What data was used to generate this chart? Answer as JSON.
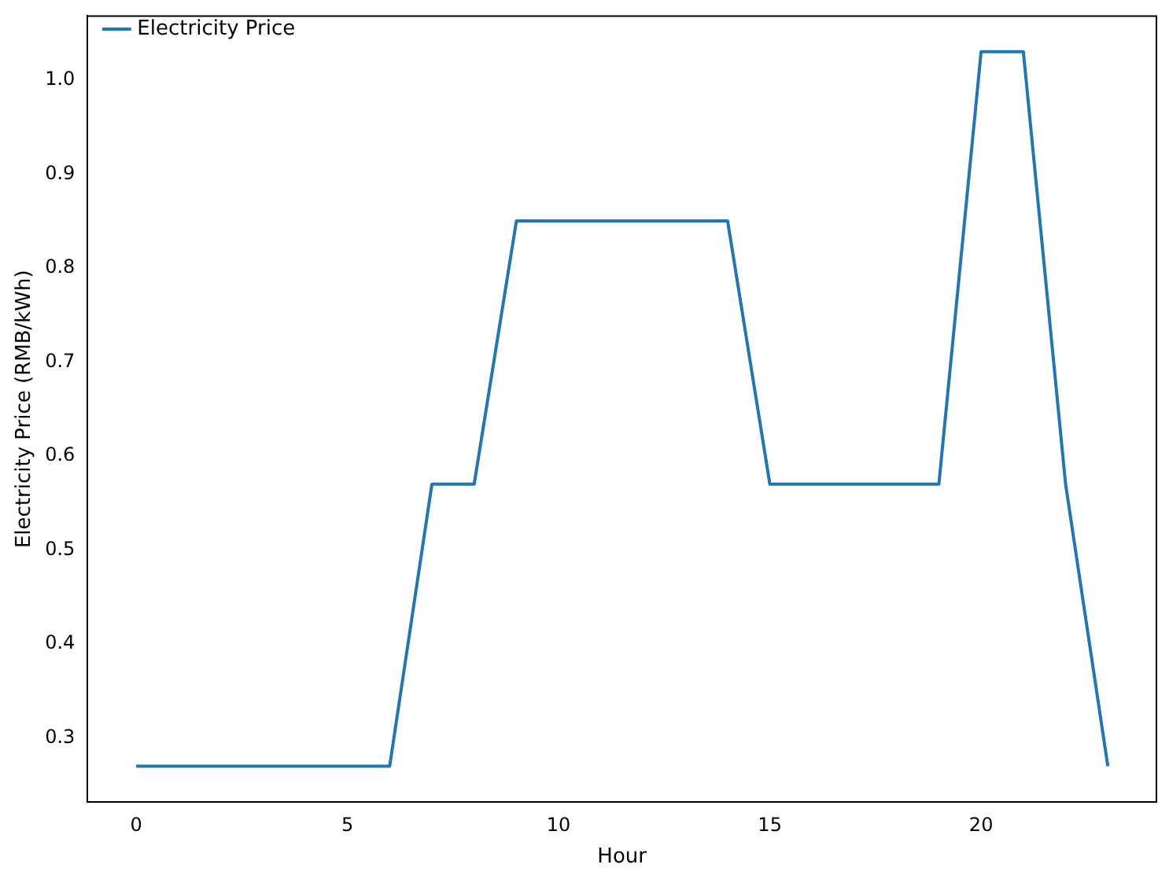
{
  "chart_data": {
    "type": "line",
    "xlabel": "Hour",
    "ylabel": "Electricity Price (RMB/kWh)",
    "x": [
      0,
      1,
      2,
      3,
      4,
      5,
      6,
      7,
      8,
      9,
      10,
      11,
      12,
      13,
      14,
      15,
      16,
      17,
      18,
      19,
      20,
      21,
      22,
      23
    ],
    "series": [
      {
        "name": "Electricity Price",
        "color": "#1f77b4",
        "values": [
          0.27,
          0.27,
          0.27,
          0.27,
          0.27,
          0.27,
          0.27,
          0.57,
          0.57,
          0.85,
          0.85,
          0.85,
          0.85,
          0.85,
          0.85,
          0.57,
          0.57,
          0.57,
          0.57,
          0.57,
          1.03,
          1.03,
          0.57,
          0.27
        ]
      }
    ],
    "xlim": [
      -1.15,
      24.15
    ],
    "xticks": [
      0,
      5,
      10,
      15,
      20
    ],
    "ylim": [
      0.232,
      1.068
    ],
    "yticks": [
      0.3,
      0.4,
      0.5,
      0.6,
      0.7,
      0.8,
      0.9,
      {
        "value": 1,
        "label": "1.0"
      }
    ],
    "grid": false,
    "legend": "top left",
    "marker": "none",
    "line_style": "solid"
  }
}
